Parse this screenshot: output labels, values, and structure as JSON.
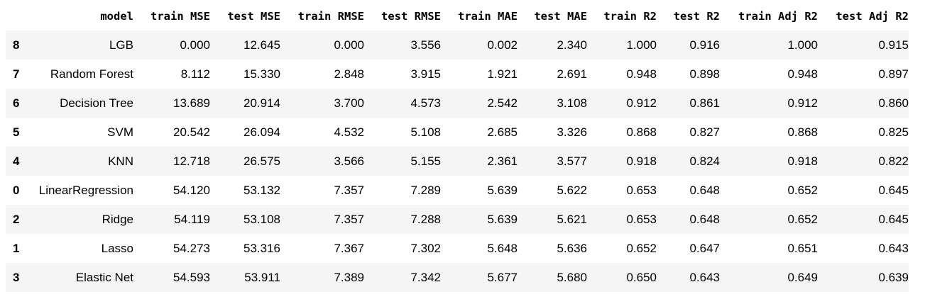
{
  "table": {
    "columns": [
      "",
      "model",
      "train MSE",
      "test MSE",
      "train RMSE",
      "test RMSE",
      "train MAE",
      "test MAE",
      "train R2",
      "test R2",
      "train Adj R2",
      "test Adj R2"
    ],
    "rows": [
      {
        "index": "8",
        "model": "LGB",
        "train_mse": "0.000",
        "test_mse": "12.645",
        "train_rmse": "0.000",
        "test_rmse": "3.556",
        "train_mae": "0.002",
        "test_mae": "2.340",
        "train_r2": "1.000",
        "test_r2": "0.916",
        "train_adj_r2": "1.000",
        "test_adj_r2": "0.915"
      },
      {
        "index": "7",
        "model": "Random Forest",
        "train_mse": "8.112",
        "test_mse": "15.330",
        "train_rmse": "2.848",
        "test_rmse": "3.915",
        "train_mae": "1.921",
        "test_mae": "2.691",
        "train_r2": "0.948",
        "test_r2": "0.898",
        "train_adj_r2": "0.948",
        "test_adj_r2": "0.897"
      },
      {
        "index": "6",
        "model": "Decision Tree",
        "train_mse": "13.689",
        "test_mse": "20.914",
        "train_rmse": "3.700",
        "test_rmse": "4.573",
        "train_mae": "2.542",
        "test_mae": "3.108",
        "train_r2": "0.912",
        "test_r2": "0.861",
        "train_adj_r2": "0.912",
        "test_adj_r2": "0.860"
      },
      {
        "index": "5",
        "model": "SVM",
        "train_mse": "20.542",
        "test_mse": "26.094",
        "train_rmse": "4.532",
        "test_rmse": "5.108",
        "train_mae": "2.685",
        "test_mae": "3.326",
        "train_r2": "0.868",
        "test_r2": "0.827",
        "train_adj_r2": "0.868",
        "test_adj_r2": "0.825"
      },
      {
        "index": "4",
        "model": "KNN",
        "train_mse": "12.718",
        "test_mse": "26.575",
        "train_rmse": "3.566",
        "test_rmse": "5.155",
        "train_mae": "2.361",
        "test_mae": "3.577",
        "train_r2": "0.918",
        "test_r2": "0.824",
        "train_adj_r2": "0.918",
        "test_adj_r2": "0.822"
      },
      {
        "index": "0",
        "model": "LinearRegression",
        "train_mse": "54.120",
        "test_mse": "53.132",
        "train_rmse": "7.357",
        "test_rmse": "7.289",
        "train_mae": "5.639",
        "test_mae": "5.622",
        "train_r2": "0.653",
        "test_r2": "0.648",
        "train_adj_r2": "0.652",
        "test_adj_r2": "0.645"
      },
      {
        "index": "2",
        "model": "Ridge",
        "train_mse": "54.119",
        "test_mse": "53.108",
        "train_rmse": "7.357",
        "test_rmse": "7.288",
        "train_mae": "5.639",
        "test_mae": "5.621",
        "train_r2": "0.653",
        "test_r2": "0.648",
        "train_adj_r2": "0.652",
        "test_adj_r2": "0.645"
      },
      {
        "index": "1",
        "model": "Lasso",
        "train_mse": "54.273",
        "test_mse": "53.316",
        "train_rmse": "7.367",
        "test_rmse": "7.302",
        "train_mae": "5.648",
        "test_mae": "5.636",
        "train_r2": "0.652",
        "test_r2": "0.647",
        "train_adj_r2": "0.651",
        "test_adj_r2": "0.643"
      },
      {
        "index": "3",
        "model": "Elastic Net",
        "train_mse": "54.593",
        "test_mse": "53.911",
        "train_rmse": "7.389",
        "test_rmse": "7.342",
        "train_mae": "5.677",
        "test_mae": "5.680",
        "train_r2": "0.650",
        "test_r2": "0.643",
        "train_adj_r2": "0.649",
        "test_adj_r2": "0.639"
      }
    ]
  },
  "colors": {
    "stripe": "#f5f5f5",
    "background": "#ffffff",
    "text": "#000000"
  }
}
